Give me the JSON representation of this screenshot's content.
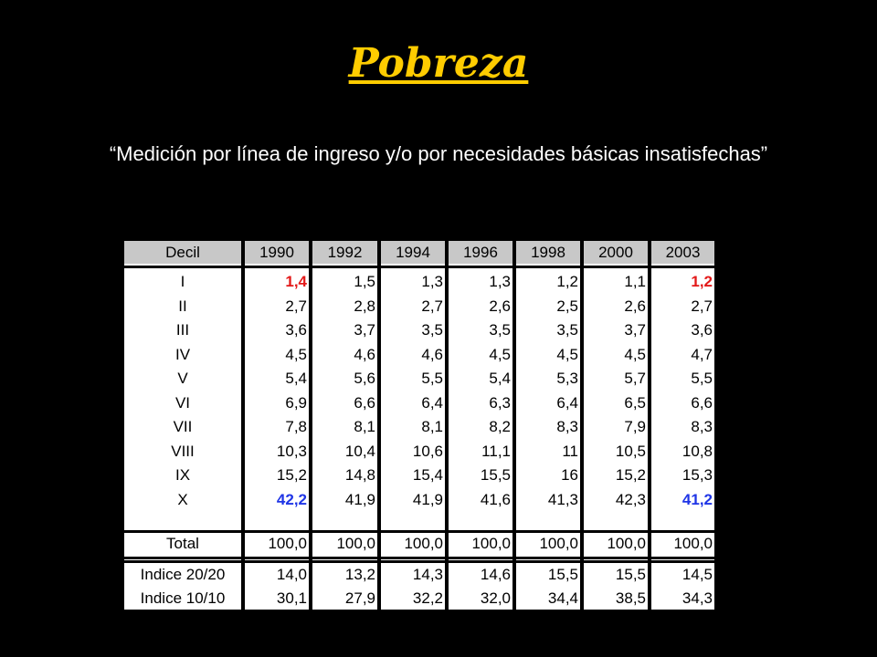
{
  "title": "Pobreza",
  "subtitle": "“Medición por línea de ingreso y/o por necesidades básicas insatisfechas”",
  "table": {
    "headers": [
      "Decil",
      "1990",
      "1992",
      "1994",
      "1996",
      "1998",
      "2000",
      "2003"
    ],
    "rows": [
      {
        "label": "I",
        "values": [
          "1,4",
          "1,5",
          "1,3",
          "1,3",
          "1,2",
          "1,1",
          "1,2"
        ]
      },
      {
        "label": "II",
        "values": [
          "2,7",
          "2,8",
          "2,7",
          "2,6",
          "2,5",
          "2,6",
          "2,7"
        ]
      },
      {
        "label": "III",
        "values": [
          "3,6",
          "3,7",
          "3,5",
          "3,5",
          "3,5",
          "3,7",
          "3,6"
        ]
      },
      {
        "label": "IV",
        "values": [
          "4,5",
          "4,6",
          "4,6",
          "4,5",
          "4,5",
          "4,5",
          "4,7"
        ]
      },
      {
        "label": "V",
        "values": [
          "5,4",
          "5,6",
          "5,5",
          "5,4",
          "5,3",
          "5,7",
          "5,5"
        ]
      },
      {
        "label": "VI",
        "values": [
          "6,9",
          "6,6",
          "6,4",
          "6,3",
          "6,4",
          "6,5",
          "6,6"
        ]
      },
      {
        "label": "VII",
        "values": [
          "7,8",
          "8,1",
          "8,1",
          "8,2",
          "8,3",
          "7,9",
          "8,3"
        ]
      },
      {
        "label": "VIII",
        "values": [
          "10,3",
          "10,4",
          "10,6",
          "11,1",
          "11",
          "10,5",
          "10,8"
        ]
      },
      {
        "label": "IX",
        "values": [
          "15,2",
          "14,8",
          "15,4",
          "15,5",
          "16",
          "15,2",
          "15,3"
        ]
      },
      {
        "label": "X",
        "values": [
          "42,2",
          "41,9",
          "41,9",
          "41,6",
          "41,3",
          "42,3",
          "41,2"
        ]
      }
    ],
    "total": {
      "label": "Total",
      "values": [
        "100,0",
        "100,0",
        "100,0",
        "100,0",
        "100,0",
        "100,0",
        "100,0"
      ]
    },
    "indices": [
      {
        "label": "Indice 20/20",
        "values": [
          "14,0",
          "13,2",
          "14,3",
          "14,6",
          "15,5",
          "15,5",
          "14,5"
        ]
      },
      {
        "label": "Indice 10/10",
        "values": [
          "30,1",
          "27,9",
          "32,2",
          "32,0",
          "34,4",
          "38,5",
          "34,3"
        ]
      }
    ],
    "highlights": {
      "red": {
        "color": "#E31919",
        "cells": [
          [
            0,
            0
          ],
          [
            0,
            6
          ]
        ]
      },
      "blue": {
        "color": "#1F35E6",
        "cells": [
          [
            9,
            0
          ],
          [
            9,
            6
          ]
        ]
      }
    }
  }
}
